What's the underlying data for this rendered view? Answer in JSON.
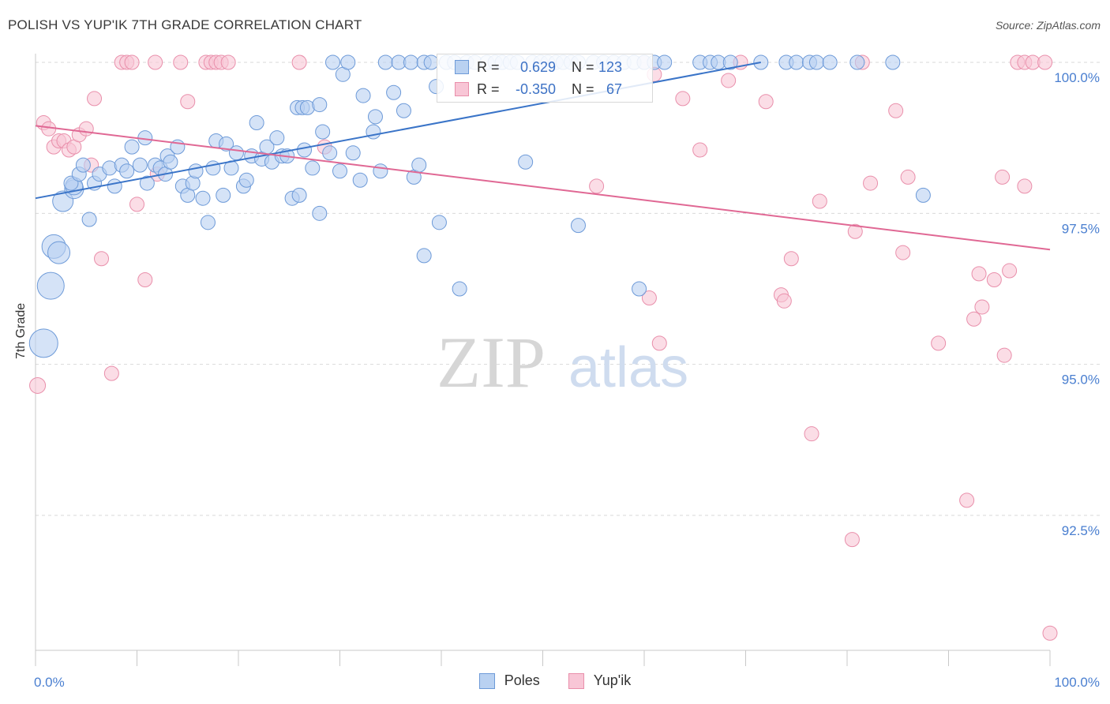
{
  "header": {
    "title": "POLISH VS YUP'IK 7TH GRADE CORRELATION CHART",
    "source": "Source: ZipAtlas.com"
  },
  "watermark": {
    "zip": "ZIP",
    "atlas": "atlas"
  },
  "legend_top": {
    "rows": [
      {
        "r_label": "R =",
        "r_value": "0.629",
        "n_label": "N =",
        "n_value": "123"
      },
      {
        "r_label": "R =",
        "r_value": "-0.350",
        "n_label": "N =",
        "n_value": "67"
      }
    ]
  },
  "legend_bottom": {
    "poles": "Poles",
    "yupik": "Yup'ik"
  },
  "colors": {
    "poles_fill": "#b9d1f1",
    "poles_stroke": "#6d9ad8",
    "poles_line": "#3a74c8",
    "yupik_fill": "#f8c6d6",
    "yupik_stroke": "#e98fab",
    "yupik_line": "#e06894",
    "tick_label": "#4a7fd0",
    "grid": "#d9d9d9"
  },
  "chart_data": {
    "type": "scatter",
    "title": "POLISH VS YUP'IK 7TH GRADE CORRELATION CHART",
    "xlabel": "",
    "ylabel": "7th Grade",
    "xlim": [
      0,
      100
    ],
    "ylim": [
      90.2,
      100.45
    ],
    "x_tick_labels": [
      "0.0%",
      "100.0%"
    ],
    "y_ticks": [
      92.5,
      95.0,
      97.5,
      100.0
    ],
    "y_tick_labels": [
      "92.5%",
      "95.0%",
      "97.5%",
      "100.0%"
    ],
    "grid": "horizontal dashed",
    "legend_position": "top-center and bottom",
    "series": [
      {
        "name": "Poles",
        "R": 0.629,
        "N": 123,
        "trend": [
          [
            0,
            97.75
          ],
          [
            71.5,
            100.0
          ]
        ],
        "points": [
          [
            0.8,
            95.35,
            18
          ],
          [
            1.5,
            96.3,
            17
          ],
          [
            1.8,
            96.95,
            15
          ],
          [
            2.3,
            96.85,
            14
          ],
          [
            2.7,
            97.7,
            13
          ],
          [
            3.8,
            97.9,
            12
          ],
          [
            3.8,
            97.95,
            11
          ],
          [
            3.5,
            98.0,
            9
          ],
          [
            4.3,
            98.15,
            9
          ],
          [
            4.7,
            98.3,
            9
          ],
          [
            5.3,
            97.4,
            9
          ],
          [
            5.8,
            98.0,
            9
          ],
          [
            6.3,
            98.15,
            9
          ],
          [
            7.3,
            98.25,
            9
          ],
          [
            7.8,
            97.95,
            9
          ],
          [
            8.5,
            98.3,
            9
          ],
          [
            9.0,
            98.2,
            9
          ],
          [
            9.5,
            98.6,
            9
          ],
          [
            10.3,
            98.3,
            9
          ],
          [
            10.8,
            98.75,
            9
          ],
          [
            11.0,
            98.0,
            9
          ],
          [
            11.8,
            98.3,
            9
          ],
          [
            12.3,
            98.25,
            9
          ],
          [
            12.8,
            98.15,
            9
          ],
          [
            13.0,
            98.45,
            9
          ],
          [
            13.3,
            98.35,
            9
          ],
          [
            14.0,
            98.6,
            9
          ],
          [
            14.5,
            97.95,
            9
          ],
          [
            15.0,
            97.8,
            9
          ],
          [
            15.5,
            98.0,
            9
          ],
          [
            15.8,
            98.2,
            9
          ],
          [
            16.5,
            97.75,
            9
          ],
          [
            17.0,
            97.35,
            9
          ],
          [
            17.5,
            98.25,
            9
          ],
          [
            17.8,
            98.7,
            9
          ],
          [
            18.5,
            97.8,
            9
          ],
          [
            18.8,
            98.65,
            9
          ],
          [
            19.3,
            98.25,
            9
          ],
          [
            19.8,
            98.5,
            9
          ],
          [
            20.5,
            97.95,
            9
          ],
          [
            20.8,
            98.05,
            9
          ],
          [
            21.3,
            98.45,
            9
          ],
          [
            21.8,
            99.0,
            9
          ],
          [
            22.3,
            98.4,
            9
          ],
          [
            22.8,
            98.6,
            9
          ],
          [
            23.3,
            98.35,
            9
          ],
          [
            23.8,
            98.75,
            9
          ],
          [
            24.3,
            98.45,
            9
          ],
          [
            24.8,
            98.45,
            9
          ],
          [
            25.3,
            97.75,
            9
          ],
          [
            25.8,
            99.25,
            9
          ],
          [
            26.0,
            97.8,
            9
          ],
          [
            26.3,
            99.25,
            9
          ],
          [
            26.5,
            98.55,
            9
          ],
          [
            26.8,
            99.25,
            9
          ],
          [
            27.3,
            98.25,
            9
          ],
          [
            28.0,
            99.3,
            9
          ],
          [
            28.0,
            97.5,
            9
          ],
          [
            28.3,
            98.85,
            9
          ],
          [
            29.0,
            98.5,
            9
          ],
          [
            29.3,
            100.0,
            9
          ],
          [
            30.0,
            98.2,
            9
          ],
          [
            30.3,
            99.8,
            9
          ],
          [
            30.8,
            100.0,
            9
          ],
          [
            31.3,
            98.5,
            9
          ],
          [
            32.0,
            98.05,
            9
          ],
          [
            32.3,
            99.45,
            9
          ],
          [
            33.3,
            98.85,
            9
          ],
          [
            33.5,
            99.1,
            9
          ],
          [
            34.0,
            98.2,
            9
          ],
          [
            34.5,
            100.0,
            9
          ],
          [
            35.3,
            99.5,
            9
          ],
          [
            35.8,
            100.0,
            9
          ],
          [
            36.3,
            99.2,
            9
          ],
          [
            37.0,
            100.0,
            9
          ],
          [
            37.3,
            98.1,
            9
          ],
          [
            37.8,
            98.3,
            9
          ],
          [
            38.3,
            100.0,
            9
          ],
          [
            39.0,
            100.0,
            9
          ],
          [
            38.3,
            96.8,
            9
          ],
          [
            39.5,
            99.6,
            9
          ],
          [
            39.8,
            97.35,
            9
          ],
          [
            40.5,
            100.0,
            9
          ],
          [
            41.3,
            100.0,
            9
          ],
          [
            41.8,
            96.25,
            9
          ],
          [
            42.5,
            100.0,
            9
          ],
          [
            43.3,
            100.0,
            9
          ],
          [
            44.5,
            100.0,
            9
          ],
          [
            45.3,
            100.0,
            9
          ],
          [
            46.0,
            100.0,
            9
          ],
          [
            46.8,
            100.0,
            9
          ],
          [
            47.5,
            100.0,
            9
          ],
          [
            48.3,
            98.35,
            9
          ],
          [
            49.0,
            100.0,
            9
          ],
          [
            49.8,
            100.0,
            9
          ],
          [
            50.5,
            100.0,
            9
          ],
          [
            51.3,
            100.0,
            9
          ],
          [
            52.0,
            100.0,
            9
          ],
          [
            52.8,
            100.0,
            9
          ],
          [
            53.5,
            100.0,
            9
          ],
          [
            55.0,
            100.0,
            9
          ],
          [
            56.0,
            100.0,
            9
          ],
          [
            57.0,
            100.0,
            9
          ],
          [
            58.0,
            100.0,
            9
          ],
          [
            59.0,
            100.0,
            9
          ],
          [
            60.0,
            100.0,
            9
          ],
          [
            61.0,
            100.0,
            9
          ],
          [
            62.0,
            100.0,
            9
          ],
          [
            53.5,
            97.3,
            9
          ],
          [
            59.5,
            96.25,
            9
          ],
          [
            65.5,
            100.0,
            9
          ],
          [
            66.5,
            100.0,
            9
          ],
          [
            67.3,
            100.0,
            9
          ],
          [
            68.5,
            100.0,
            9
          ],
          [
            71.5,
            100.0,
            9
          ],
          [
            74.0,
            100.0,
            9
          ],
          [
            75.0,
            100.0,
            9
          ],
          [
            76.3,
            100.0,
            9
          ],
          [
            77.0,
            100.0,
            9
          ],
          [
            78.3,
            100.0,
            9
          ],
          [
            81.0,
            100.0,
            9
          ],
          [
            84.5,
            100.0,
            9
          ],
          [
            87.5,
            97.8,
            9
          ]
        ]
      },
      {
        "name": "Yup'ik",
        "R": -0.35,
        "N": 67,
        "trend": [
          [
            0,
            98.95
          ],
          [
            100,
            96.9
          ]
        ],
        "points": [
          [
            0.2,
            94.65,
            10
          ],
          [
            0.8,
            99.0,
            9
          ],
          [
            1.3,
            98.9,
            9
          ],
          [
            1.8,
            98.6,
            9
          ],
          [
            2.3,
            98.7,
            9
          ],
          [
            2.8,
            98.7,
            9
          ],
          [
            3.3,
            98.55,
            9
          ],
          [
            3.8,
            98.6,
            9
          ],
          [
            4.3,
            98.8,
            9
          ],
          [
            5.0,
            98.9,
            9
          ],
          [
            5.5,
            98.3,
            9
          ],
          [
            5.8,
            99.4,
            9
          ],
          [
            6.5,
            96.75,
            9
          ],
          [
            7.5,
            94.85,
            9
          ],
          [
            8.5,
            100.0,
            9
          ],
          [
            9.0,
            100.0,
            9
          ],
          [
            9.5,
            100.0,
            9
          ],
          [
            10.0,
            97.65,
            9
          ],
          [
            10.8,
            96.4,
            9
          ],
          [
            11.8,
            100.0,
            9
          ],
          [
            12.0,
            98.15,
            9
          ],
          [
            14.3,
            100.0,
            9
          ],
          [
            15.0,
            99.35,
            9
          ],
          [
            16.8,
            100.0,
            9
          ],
          [
            17.3,
            100.0,
            9
          ],
          [
            17.8,
            100.0,
            9
          ],
          [
            18.3,
            100.0,
            9
          ],
          [
            19.0,
            100.0,
            9
          ],
          [
            26.0,
            100.0,
            9
          ],
          [
            28.5,
            98.6,
            9
          ],
          [
            55.3,
            97.95,
            9
          ],
          [
            60.0,
            100.0,
            9
          ],
          [
            60.5,
            96.1,
            9
          ],
          [
            61.0,
            99.8,
            9
          ],
          [
            61.5,
            95.35,
            9
          ],
          [
            63.8,
            99.4,
            9
          ],
          [
            65.5,
            98.55,
            9
          ],
          [
            68.3,
            99.7,
            9
          ],
          [
            69.5,
            100.0,
            9
          ],
          [
            72.0,
            99.35,
            9
          ],
          [
            73.5,
            96.15,
            9
          ],
          [
            73.8,
            96.05,
            9
          ],
          [
            74.5,
            96.75,
            9
          ],
          [
            76.5,
            93.85,
            9
          ],
          [
            77.3,
            97.7,
            9
          ],
          [
            80.5,
            92.1,
            9
          ],
          [
            80.8,
            97.2,
            9
          ],
          [
            81.5,
            100.0,
            9
          ],
          [
            82.3,
            98.0,
            9
          ],
          [
            84.8,
            99.2,
            9
          ],
          [
            85.5,
            96.85,
            9
          ],
          [
            86.0,
            98.1,
            9
          ],
          [
            89.0,
            95.35,
            9
          ],
          [
            91.8,
            92.75,
            9
          ],
          [
            92.5,
            95.75,
            9
          ],
          [
            93.0,
            96.5,
            9
          ],
          [
            93.3,
            95.95,
            9
          ],
          [
            94.5,
            96.4,
            9
          ],
          [
            95.3,
            98.1,
            9
          ],
          [
            95.5,
            95.15,
            9
          ],
          [
            96.0,
            96.55,
            9
          ],
          [
            96.8,
            100.0,
            9
          ],
          [
            97.5,
            100.0,
            9
          ],
          [
            98.3,
            100.0,
            9
          ],
          [
            99.5,
            100.0,
            9
          ],
          [
            97.5,
            97.95,
            9
          ],
          [
            100.0,
            90.55,
            9
          ]
        ]
      }
    ]
  }
}
